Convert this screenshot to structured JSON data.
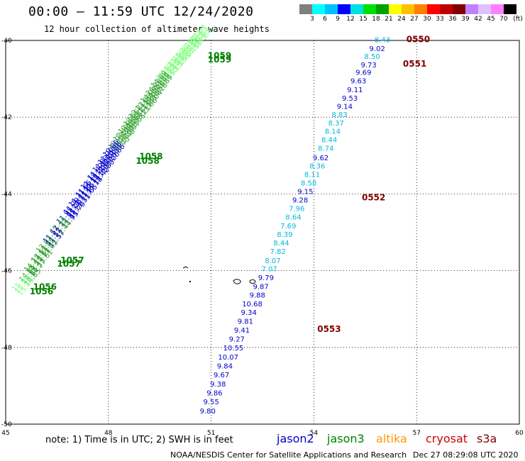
{
  "header": {
    "title": "00:00 – 11:59 UTC 12/24/2020",
    "subtitle": "12 hour collection of altimeter wave heights"
  },
  "legend": {
    "unit": "(ft)",
    "ticks": [
      "3",
      "6",
      "9",
      "12",
      "15",
      "18",
      "21",
      "24",
      "27",
      "30",
      "33",
      "36",
      "39",
      "42",
      "45",
      "70"
    ],
    "colors": [
      "#808080",
      "#00ffff",
      "#00c0ff",
      "#0000ff",
      "#00e0e0",
      "#00e000",
      "#00a000",
      "#ffff00",
      "#ffc000",
      "#ff8000",
      "#ff0000",
      "#c00000",
      "#800000",
      "#c080ff",
      "#e0c0ff",
      "#ff80ff",
      "#000000"
    ]
  },
  "footer": {
    "note": "note:  1) Time is in UTC;  2) SWH is in feet",
    "agency": "NOAA/NESDIS Center for Satellite Applications and Research",
    "timestamp": "Dec 27 08:29:08 UTC 2020"
  },
  "satellites": [
    {
      "name": "jason2",
      "color": "#0000cc"
    },
    {
      "name": "jason3",
      "color": "#008000"
    },
    {
      "name": "altika",
      "color": "#ff9900"
    },
    {
      "name": "cryosat",
      "color": "#cc0000"
    },
    {
      "name": "s3a",
      "color": "#800000"
    }
  ],
  "chart_data": {
    "type": "scatter",
    "title": "00:00 – 11:59 UTC 12/24/2020",
    "subtitle": "12 hour collection of altimeter wave heights",
    "xlim": [
      45,
      60
    ],
    "ylim": [
      -50,
      -40
    ],
    "x_ticks": [
      "45",
      "48",
      "51",
      "54",
      "57",
      "60"
    ],
    "y_ticks": [
      "-40",
      "-42",
      "-44",
      "-46",
      "-48",
      "-50"
    ],
    "grid": true,
    "time_labels": [
      {
        "text": "0550",
        "lon": 56.7,
        "lat": -40.05,
        "color": "#800000"
      },
      {
        "text": "0551",
        "lon": 56.6,
        "lat": -40.68,
        "color": "#800000"
      },
      {
        "text": "0552",
        "lon": 55.4,
        "lat": -44.17,
        "color": "#800000"
      },
      {
        "text": "0553",
        "lon": 54.1,
        "lat": -47.6,
        "color": "#800000"
      },
      {
        "text": "1059",
        "lon": 50.9,
        "lat": -40.47,
        "color": "#008000"
      },
      {
        "text": "1059",
        "lon": 50.9,
        "lat": -40.57,
        "color": "#008000"
      },
      {
        "text": "1058",
        "lon": 48.9,
        "lat": -43.1,
        "color": "#008000"
      },
      {
        "text": "1058",
        "lon": 48.8,
        "lat": -43.22,
        "color": "#008000"
      },
      {
        "text": "1057",
        "lon": 46.6,
        "lat": -45.8,
        "color": "#008000"
      },
      {
        "text": "1057",
        "lon": 46.5,
        "lat": -45.9,
        "color": "#008000"
      },
      {
        "text": "1056",
        "lon": 45.8,
        "lat": -46.5,
        "color": "#008000"
      },
      {
        "text": "1056",
        "lon": 45.7,
        "lat": -46.62,
        "color": "#008000"
      }
    ],
    "series": [
      {
        "name": "s3a",
        "color_by_value": true,
        "points": [
          {
            "lon": 56.0,
            "lat": -40.05,
            "swh": "8.43"
          },
          {
            "lon": 55.85,
            "lat": -40.28,
            "swh": "9.02"
          },
          {
            "lon": 55.7,
            "lat": -40.48,
            "swh": "8.50"
          },
          {
            "lon": 55.6,
            "lat": -40.7,
            "swh": "9.73"
          },
          {
            "lon": 55.45,
            "lat": -40.9,
            "swh": "9.69"
          },
          {
            "lon": 55.3,
            "lat": -41.12,
            "swh": "9.63"
          },
          {
            "lon": 55.2,
            "lat": -41.35,
            "swh": "9.11"
          },
          {
            "lon": 55.05,
            "lat": -41.57,
            "swh": "9.53"
          },
          {
            "lon": 54.9,
            "lat": -41.78,
            "swh": "9.14"
          },
          {
            "lon": 54.75,
            "lat": -42.0,
            "swh": "8.83"
          },
          {
            "lon": 54.65,
            "lat": -42.22,
            "swh": "8.37"
          },
          {
            "lon": 54.55,
            "lat": -42.43,
            "swh": "8.14"
          },
          {
            "lon": 54.45,
            "lat": -42.65,
            "swh": "8.44"
          },
          {
            "lon": 54.35,
            "lat": -42.87,
            "swh": "8.74"
          },
          {
            "lon": 54.2,
            "lat": -43.12,
            "swh": "9.62"
          },
          {
            "lon": 54.1,
            "lat": -43.34,
            "swh": "8.36"
          },
          {
            "lon": 53.95,
            "lat": -43.56,
            "swh": "8.11"
          },
          {
            "lon": 53.85,
            "lat": -43.78,
            "swh": "8.58"
          },
          {
            "lon": 53.75,
            "lat": -44.0,
            "swh": "9.15"
          },
          {
            "lon": 53.6,
            "lat": -44.22,
            "swh": "9.28"
          },
          {
            "lon": 53.5,
            "lat": -44.45,
            "swh": "7.96"
          },
          {
            "lon": 53.4,
            "lat": -44.67,
            "swh": "8.64"
          },
          {
            "lon": 53.25,
            "lat": -44.9,
            "swh": "7.69"
          },
          {
            "lon": 53.15,
            "lat": -45.12,
            "swh": "8.39"
          },
          {
            "lon": 53.05,
            "lat": -45.34,
            "swh": "8.44"
          },
          {
            "lon": 52.95,
            "lat": -45.56,
            "swh": "7.82"
          },
          {
            "lon": 52.8,
            "lat": -45.8,
            "swh": "8.07"
          },
          {
            "lon": 52.7,
            "lat": -46.02,
            "swh": "7.07"
          },
          {
            "lon": 52.6,
            "lat": -46.25,
            "swh": "9.79"
          },
          {
            "lon": 52.45,
            "lat": -46.48,
            "swh": "9.87"
          },
          {
            "lon": 52.35,
            "lat": -46.7,
            "swh": "9.88"
          },
          {
            "lon": 52.2,
            "lat": -46.93,
            "swh": "10.68"
          },
          {
            "lon": 52.1,
            "lat": -47.15,
            "swh": "9.34"
          },
          {
            "lon": 52.0,
            "lat": -47.38,
            "swh": "9.81"
          },
          {
            "lon": 51.9,
            "lat": -47.62,
            "swh": "9.41"
          },
          {
            "lon": 51.75,
            "lat": -47.85,
            "swh": "9.27"
          },
          {
            "lon": 51.65,
            "lat": -48.08,
            "swh": "10.55"
          },
          {
            "lon": 51.5,
            "lat": -48.32,
            "swh": "10.07"
          },
          {
            "lon": 51.4,
            "lat": -48.55,
            "swh": "9.84"
          },
          {
            "lon": 51.3,
            "lat": -48.78,
            "swh": "9.67"
          },
          {
            "lon": 51.2,
            "lat": -49.02,
            "swh": "9.38"
          },
          {
            "lon": 51.1,
            "lat": -49.25,
            "swh": "9.86"
          },
          {
            "lon": 51.0,
            "lat": -49.48,
            "swh": "9.55"
          },
          {
            "lon": 50.9,
            "lat": -49.72,
            "swh": "9.80"
          }
        ]
      },
      {
        "name": "jason3",
        "color_by_value": true,
        "points": [
          {
            "lon": 50.6,
            "lat": -40.05,
            "swh": "17.64"
          },
          {
            "lon": 50.45,
            "lat": -40.2,
            "swh": "16.53"
          },
          {
            "lon": 50.3,
            "lat": -40.35,
            "swh": "16.59"
          },
          {
            "lon": 50.1,
            "lat": -40.55,
            "swh": "15.47"
          },
          {
            "lon": 49.95,
            "lat": -40.7,
            "swh": "15.86"
          },
          {
            "lon": 49.75,
            "lat": -40.9,
            "swh": "15.15"
          },
          {
            "lon": 49.6,
            "lat": -41.05,
            "swh": "16.40"
          },
          {
            "lon": 49.45,
            "lat": -41.25,
            "swh": "14.89"
          },
          {
            "lon": 49.3,
            "lat": -41.45,
            "swh": "14.18"
          },
          {
            "lon": 49.15,
            "lat": -41.65,
            "swh": "14.04"
          },
          {
            "lon": 49.0,
            "lat": -41.85,
            "swh": "13.66"
          },
          {
            "lon": 48.8,
            "lat": -42.05,
            "swh": "13.21"
          },
          {
            "lon": 48.65,
            "lat": -42.25,
            "swh": "13.55"
          },
          {
            "lon": 48.5,
            "lat": -42.45,
            "swh": "12.97"
          },
          {
            "lon": 48.35,
            "lat": -42.65,
            "swh": "12.48"
          },
          {
            "lon": 48.2,
            "lat": -42.85,
            "swh": "12.73"
          },
          {
            "lon": 48.05,
            "lat": -43.05,
            "swh": "10.86"
          },
          {
            "lon": 47.9,
            "lat": -43.25,
            "swh": "11.20"
          },
          {
            "lon": 47.75,
            "lat": -43.45,
            "swh": "11.83"
          },
          {
            "lon": 47.6,
            "lat": -43.65,
            "swh": "11.42"
          },
          {
            "lon": 47.4,
            "lat": -43.9,
            "swh": "11.18"
          },
          {
            "lon": 47.25,
            "lat": -44.1,
            "swh": "11.65"
          },
          {
            "lon": 47.05,
            "lat": -44.35,
            "swh": "11.31"
          },
          {
            "lon": 46.9,
            "lat": -44.55,
            "swh": "11.79"
          },
          {
            "lon": 46.7,
            "lat": -44.8,
            "swh": "11.95"
          },
          {
            "lon": 46.5,
            "lat": -45.05,
            "swh": "12.44"
          },
          {
            "lon": 46.3,
            "lat": -45.3,
            "swh": "11.57"
          },
          {
            "lon": 46.1,
            "lat": -45.55,
            "swh": "13.02"
          },
          {
            "lon": 45.95,
            "lat": -45.8,
            "swh": "13.61"
          },
          {
            "lon": 45.75,
            "lat": -46.05,
            "swh": "14.27"
          },
          {
            "lon": 45.6,
            "lat": -46.3,
            "swh": "14.85"
          },
          {
            "lon": 45.4,
            "lat": -46.55,
            "swh": "15.40"
          }
        ]
      }
    ]
  }
}
